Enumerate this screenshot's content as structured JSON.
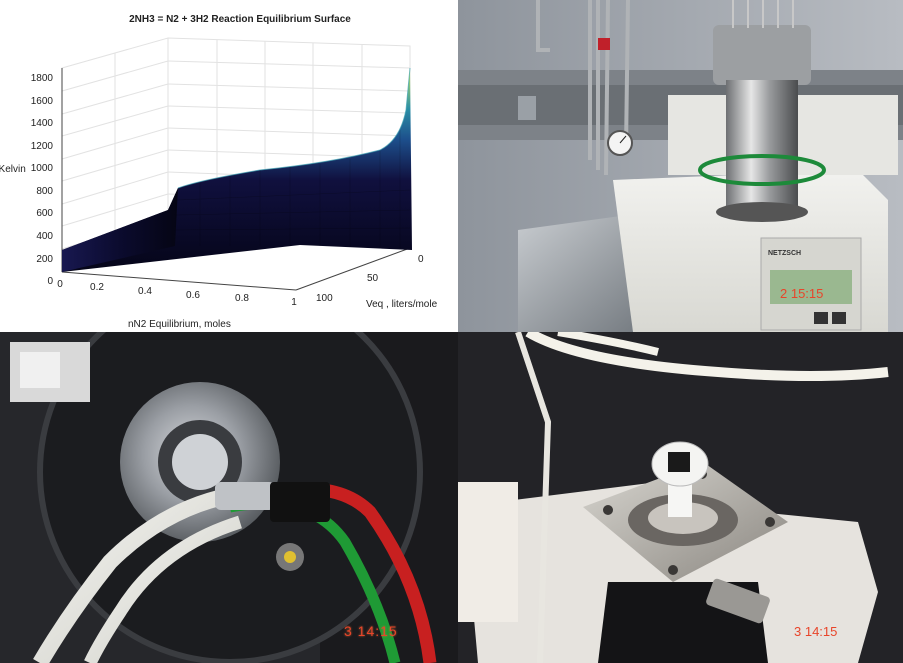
{
  "plot": {
    "title": "2NH3 = N2 + 3H2 Reaction Equilibrium Surface",
    "zlabel": "T, Kelvin",
    "xlabel": "nN2 Equilibrium, moles",
    "ylabel": "Veq , liters/mole",
    "zticks": [
      "0",
      "200",
      "400",
      "600",
      "800",
      "1000",
      "1200",
      "1400",
      "1600",
      "1800"
    ],
    "xticks": [
      "0",
      "0.2",
      "0.4",
      "0.6",
      "0.8",
      "1"
    ],
    "yticks": [
      "0",
      "50",
      "100"
    ]
  },
  "photo_instrument": {
    "brand": "NETZSCH",
    "display": "2 15:15"
  },
  "photo_diffractometer": {
    "stamp": "3 14:15"
  },
  "photo_sample_stage": {
    "stamp": "3 14:15"
  },
  "colors": {
    "surface_high": "#c8e85a",
    "surface_mid": "#2b8fa6",
    "surface_low": "#0d0d3a",
    "stamp": "#e8452a"
  }
}
